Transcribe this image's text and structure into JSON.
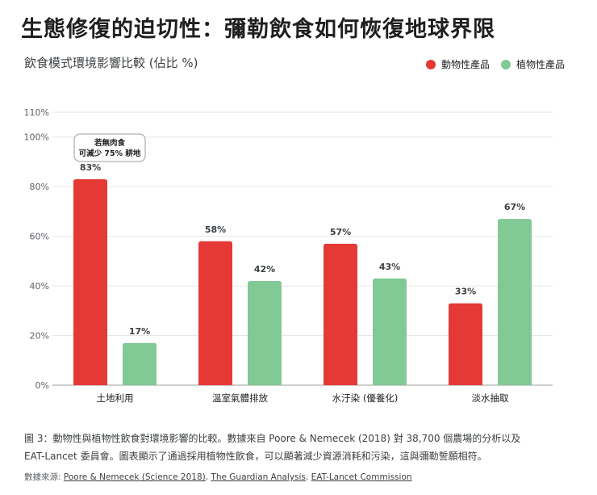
{
  "page": {
    "title": "生態修復的迫切性：彌勒飲食如何恢復地球界限",
    "caption": "圖 3：動物性與植物性飲食對環境影響的比較。數據來自 Poore & Nemecek (2018) 對 38,700 個農場的分析以及 EAT-Lancet 委員會。圖表顯示了通過採用植物性飲食，可以顯著減少資源消耗和污染，這與彌勒誓願相符。",
    "sources_label": "數據來源:",
    "sources": [
      "Poore & Nemecek (Science 2018)",
      "The Guardian Analysis",
      "EAT-Lancet Commission"
    ]
  },
  "colors": {
    "animal": "#e53935",
    "plant": "#81c995",
    "grid": "#e6e6e6",
    "axis_text": "#5f6368"
  },
  "chart_data": {
    "type": "bar",
    "title": "飲食模式環境影響比較 (佔比 %)",
    "categories": [
      "土地利用",
      "溫室氣體排放",
      "水汙染 (優養化)",
      "淡水抽取"
    ],
    "series": [
      {
        "name": "動物性產品",
        "values": [
          83,
          58,
          57,
          33
        ],
        "labels": [
          "83%",
          "58%",
          "57%",
          "33%"
        ]
      },
      {
        "name": "植物性產品",
        "values": [
          17,
          42,
          43,
          67
        ],
        "labels": [
          "17%",
          "42%",
          "43%",
          "67%"
        ]
      }
    ],
    "ylim": [
      0,
      110
    ],
    "yticks": [
      0,
      20,
      40,
      60,
      80,
      100,
      110
    ],
    "ytick_labels": [
      "0%",
      "20%",
      "40%",
      "60%",
      "80%",
      "100%",
      "110%"
    ],
    "xlabel": "",
    "ylabel": "",
    "legend_position": "top-right",
    "annotation": {
      "lines": [
        "若無肉食",
        "可減少 75% 耕地"
      ],
      "category_index": 0,
      "series_index": 0
    }
  }
}
